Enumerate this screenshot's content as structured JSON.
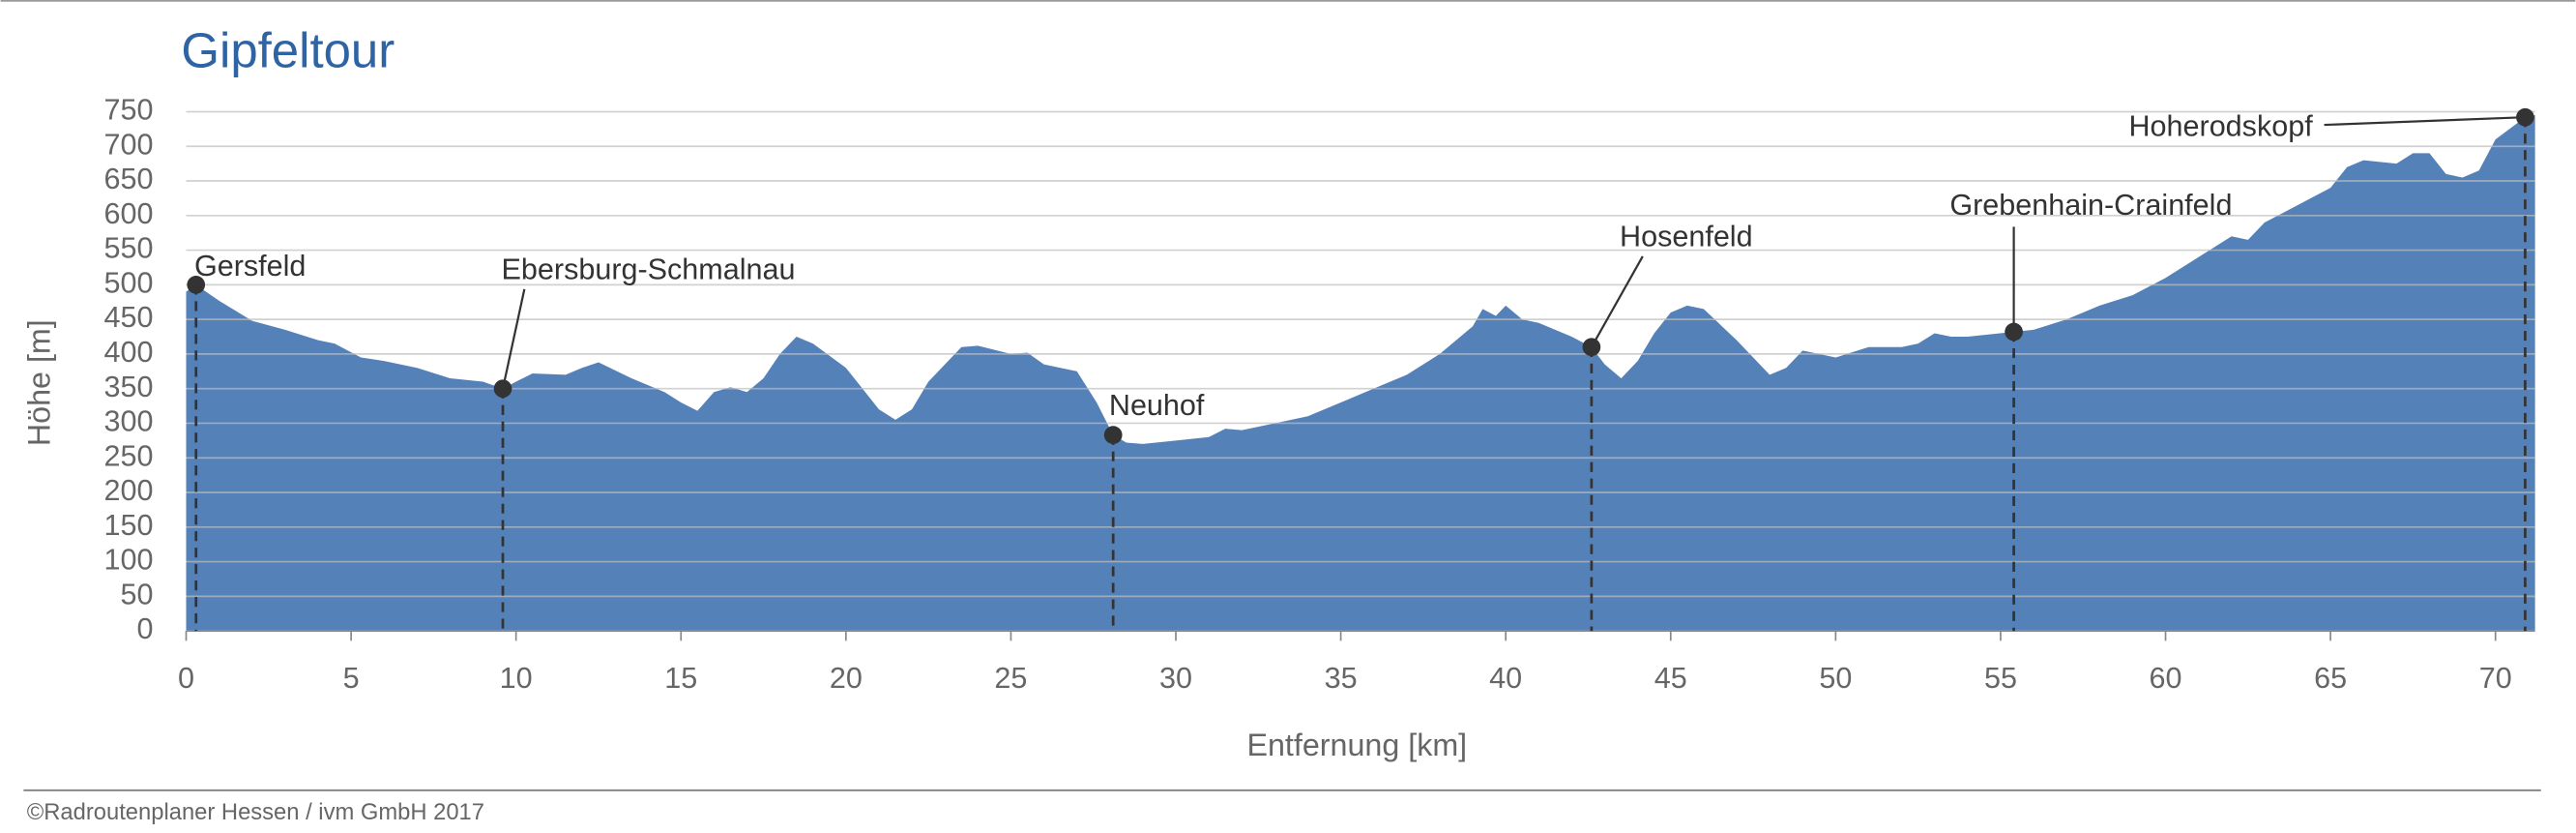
{
  "chart_data": {
    "type": "area",
    "title": "Gipfeltour",
    "xlabel": "Entfernung [km]",
    "ylabel": "Höhe [m]",
    "footer": "©Radroutenplaner Hessen / ivm GmbH 2017",
    "color": "#5581b9",
    "grid": true,
    "xlim": [
      0,
      71.2
    ],
    "ylim": [
      0,
      750
    ],
    "xticks": [
      0,
      5,
      10,
      15,
      20,
      25,
      30,
      35,
      40,
      45,
      50,
      55,
      60,
      65,
      70
    ],
    "yticks": [
      0,
      50,
      100,
      150,
      200,
      250,
      300,
      350,
      400,
      450,
      500,
      550,
      600,
      650,
      700,
      750
    ],
    "x": [
      0,
      0.3,
      1,
      2,
      3,
      4,
      4.5,
      5.3,
      6,
      7,
      8,
      9,
      9.6,
      10,
      10.5,
      11.5,
      12,
      12.5,
      13.5,
      14.5,
      15,
      15.5,
      16,
      16.5,
      17,
      17.5,
      18,
      18.5,
      19,
      20,
      20.5,
      21,
      21.5,
      22,
      22.5,
      23,
      23.5,
      24,
      25,
      25.5,
      26,
      27,
      27.6,
      28.1,
      28.5,
      29,
      30,
      31,
      31.5,
      32,
      33,
      34,
      35,
      36,
      37,
      38,
      39,
      39.3,
      39.7,
      40,
      40.5,
      41,
      42,
      42.6,
      43,
      43.5,
      44,
      44.5,
      45,
      45.5,
      46,
      47,
      48,
      48.5,
      49,
      49.5,
      50,
      51,
      52,
      52.5,
      53,
      53.5,
      54,
      55.4,
      56,
      57,
      58,
      59,
      60,
      61,
      62,
      62.5,
      63,
      64,
      65,
      65.5,
      66,
      67,
      67.5,
      68,
      68.5,
      69,
      69.5,
      70,
      70.9,
      71.2
    ],
    "values": [
      490,
      500,
      477,
      448,
      435,
      420,
      415,
      395,
      390,
      380,
      365,
      360,
      350,
      360,
      372,
      370,
      380,
      388,
      365,
      345,
      330,
      318,
      345,
      352,
      345,
      365,
      400,
      425,
      415,
      380,
      350,
      320,
      305,
      320,
      360,
      385,
      410,
      412,
      400,
      402,
      385,
      375,
      330,
      283,
      272,
      270,
      275,
      280,
      292,
      290,
      300,
      310,
      330,
      350,
      370,
      400,
      440,
      465,
      455,
      470,
      450,
      445,
      425,
      410,
      385,
      365,
      390,
      430,
      460,
      470,
      465,
      420,
      370,
      380,
      405,
      400,
      395,
      410,
      410,
      415,
      430,
      425,
      425,
      432,
      435,
      450,
      470,
      485,
      510,
      540,
      570,
      565,
      590,
      615,
      640,
      670,
      680,
      675,
      690,
      690,
      660,
      655,
      665,
      710,
      742,
      745
    ],
    "waypoints": [
      {
        "label": "Gersfeld",
        "km": 0.3,
        "elevation": 500
      },
      {
        "label": "Ebersburg-Schmalnau",
        "km": 9.6,
        "elevation": 350
      },
      {
        "label": "Neuhof",
        "km": 28.1,
        "elevation": 283
      },
      {
        "label": "Hosenfeld",
        "km": 42.6,
        "elevation": 410
      },
      {
        "label": "Grebenhain-Crainfeld",
        "km": 55.4,
        "elevation": 432
      },
      {
        "label": "Hoherodskopf",
        "km": 70.9,
        "elevation": 742
      }
    ]
  }
}
